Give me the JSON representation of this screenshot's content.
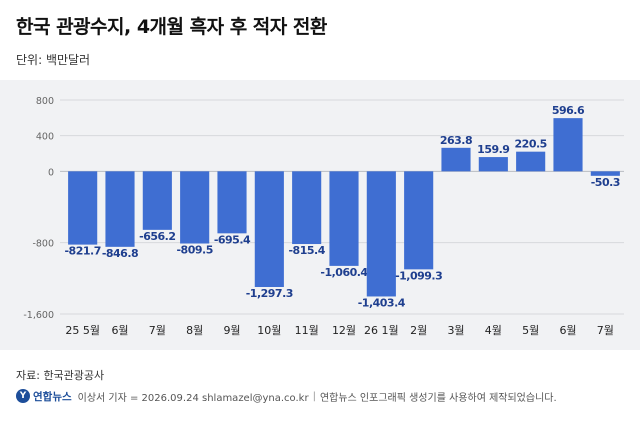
{
  "header": {
    "title": "한국 관광수지, 4개월 흑자 후 적자 전환",
    "unit": "단위: 백만달러"
  },
  "footer": {
    "source": "자료: 한국관광공사",
    "logo_text": "연합뉴스",
    "credit": "이상서 기자 = 2026.09.24 shlamazel@yna.co.kr",
    "notice": "연합뉴스 인포그래픽 생성기를 사용하여 제작되었습니다."
  },
  "colors": {
    "bar": "#3f6ed2",
    "panel": "#f1f2f4",
    "value_label": "#1f3f8f"
  },
  "chart_data": {
    "type": "bar",
    "title": "한국 관광수지, 4개월 흑자 후 적자 전환",
    "ylabel": "단위: 백만달러",
    "categories": [
      "25 5월",
      "6월",
      "7월",
      "8월",
      "9월",
      "10월",
      "11월",
      "12월",
      "26 1월",
      "2월",
      "3월",
      "4월",
      "5월",
      "6월",
      "7월"
    ],
    "values": [
      -821.7,
      -846.8,
      -656.2,
      -809.5,
      -695.4,
      -1297.3,
      -815.4,
      -1060.4,
      -1403.4,
      -1099.3,
      263.8,
      159.9,
      220.5,
      596.6,
      -50.3
    ],
    "value_labels": [
      "-821.7",
      "-846.8",
      "-656.2",
      "-809.5",
      "-695.4",
      "-1,297.3",
      "-815.4",
      "-1,060.4",
      "-1,403.4",
      "-1,099.3",
      "263.8",
      "159.9",
      "220.5",
      "596.6",
      "-50.3"
    ],
    "yticks": [
      800,
      400,
      0,
      -800,
      -1600
    ],
    "ytick_labels": [
      "800",
      "400",
      "0",
      "-800",
      "-1,600"
    ],
    "ylim": [
      -1600,
      800
    ],
    "grid": true,
    "legend": "none"
  }
}
